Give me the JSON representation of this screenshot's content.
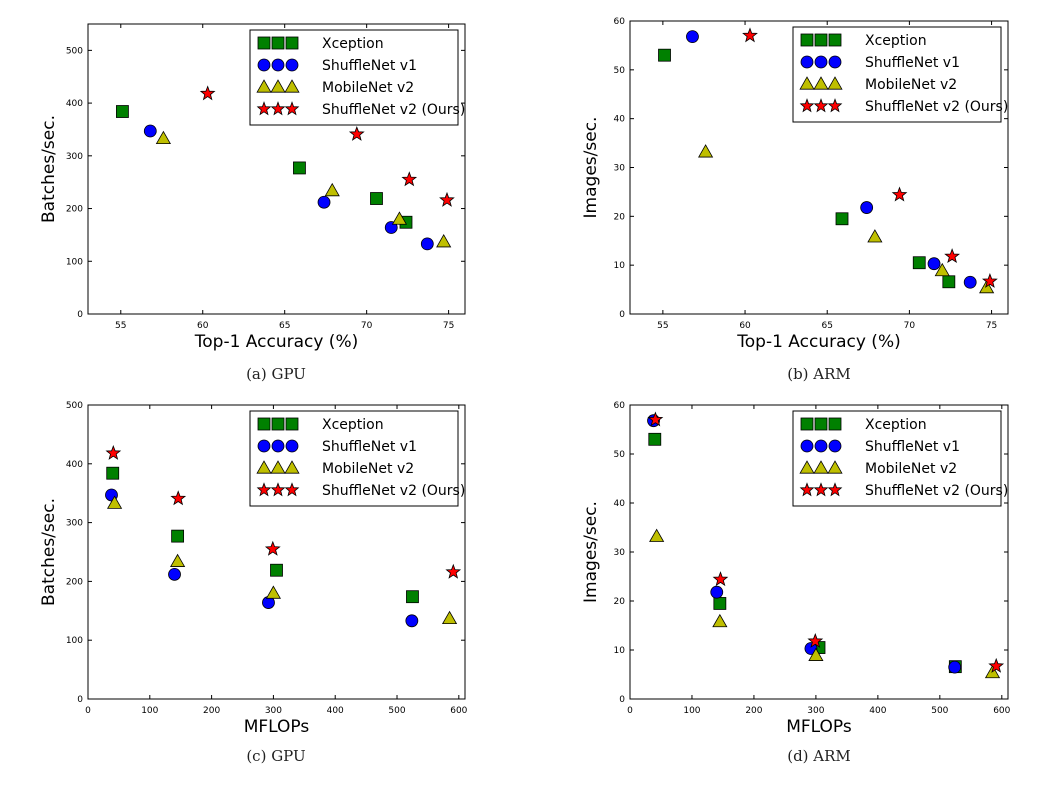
{
  "figure": {
    "colors": {
      "Xception": "#008000",
      "ShuffleNet v1": "#0000ff",
      "MobileNet v2": "#bfbf00",
      "ShuffleNet v2 (Ours)": "#ff0000"
    },
    "markers": {
      "Xception": "square",
      "ShuffleNet v1": "circle",
      "MobileNet v2": "triangle",
      "ShuffleNet v2 (Ours)": "star"
    }
  },
  "chart_data": [
    {
      "type": "scatter",
      "caption": "(a) GPU",
      "xlabel": "Top-1 Accuracy (%)",
      "ylabel": "Batches/sec.",
      "xlim": [
        53,
        76
      ],
      "ylim": [
        0,
        550
      ],
      "xticks": [
        55,
        60,
        65,
        70,
        75
      ],
      "yticks": [
        0,
        100,
        200,
        300,
        400,
        500
      ],
      "legend": "top-right",
      "series": [
        {
          "name": "Xception",
          "x": [
            55.1,
            65.9,
            70.6,
            72.4
          ],
          "y": [
            384,
            277,
            219,
            174
          ]
        },
        {
          "name": "ShuffleNet v1",
          "x": [
            56.8,
            67.4,
            71.5,
            73.7
          ],
          "y": [
            347,
            212,
            164,
            133
          ]
        },
        {
          "name": "MobileNet v2",
          "x": [
            57.6,
            67.9,
            72.0,
            74.7
          ],
          "y": [
            333,
            234,
            180,
            137
          ]
        },
        {
          "name": "ShuffleNet v2 (Ours)",
          "x": [
            60.3,
            69.4,
            72.6,
            74.9
          ],
          "y": [
            418,
            341,
            255,
            216
          ]
        }
      ]
    },
    {
      "type": "scatter",
      "caption": "(b) ARM",
      "xlabel": "Top-1 Accuracy (%)",
      "ylabel": "Images/sec.",
      "xlim": [
        53,
        76
      ],
      "ylim": [
        0,
        60
      ],
      "xticks": [
        55,
        60,
        65,
        70,
        75
      ],
      "yticks": [
        0,
        10,
        20,
        30,
        40,
        50,
        60
      ],
      "legend": "top-right",
      "series": [
        {
          "name": "Xception",
          "x": [
            55.1,
            65.9,
            70.6,
            72.4
          ],
          "y": [
            53.0,
            19.5,
            10.5,
            6.6
          ]
        },
        {
          "name": "ShuffleNet v1",
          "x": [
            56.8,
            67.4,
            71.5,
            73.7
          ],
          "y": [
            56.8,
            21.8,
            10.3,
            6.5
          ]
        },
        {
          "name": "MobileNet v2",
          "x": [
            57.6,
            67.9,
            72.0,
            74.7
          ],
          "y": [
            33.2,
            15.8,
            8.9,
            5.4
          ]
        },
        {
          "name": "ShuffleNet v2 (Ours)",
          "x": [
            60.3,
            69.4,
            72.6,
            74.9
          ],
          "y": [
            57.0,
            24.4,
            11.8,
            6.7
          ]
        }
      ]
    },
    {
      "type": "scatter",
      "caption": "(c) GPU",
      "xlabel": "MFLOPs",
      "ylabel": "Batches/sec.",
      "xlim": [
        0,
        610
      ],
      "ylim": [
        0,
        500
      ],
      "xticks": [
        0,
        100,
        200,
        300,
        400,
        500,
        600
      ],
      "yticks": [
        0,
        100,
        200,
        300,
        400,
        500
      ],
      "legend": "top-right",
      "series": [
        {
          "name": "Xception",
          "x": [
            40,
            145,
            305,
            525
          ],
          "y": [
            384,
            277,
            219,
            174
          ]
        },
        {
          "name": "ShuffleNet v1",
          "x": [
            38,
            140,
            292,
            524
          ],
          "y": [
            347,
            212,
            164,
            133
          ]
        },
        {
          "name": "MobileNet v2",
          "x": [
            43,
            145,
            300,
            585
          ],
          "y": [
            333,
            234,
            180,
            137
          ]
        },
        {
          "name": "ShuffleNet v2 (Ours)",
          "x": [
            41,
            146,
            299,
            591
          ],
          "y": [
            418,
            341,
            255,
            216
          ]
        }
      ]
    },
    {
      "type": "scatter",
      "caption": "(d) ARM",
      "xlabel": "MFLOPs",
      "ylabel": "Images/sec.",
      "xlim": [
        0,
        610
      ],
      "ylim": [
        0,
        60
      ],
      "xticks": [
        0,
        100,
        200,
        300,
        400,
        500,
        600
      ],
      "yticks": [
        0,
        10,
        20,
        30,
        40,
        50,
        60
      ],
      "legend": "top-right",
      "series": [
        {
          "name": "Xception",
          "x": [
            40,
            145,
            305,
            525
          ],
          "y": [
            53.0,
            19.5,
            10.5,
            6.6
          ]
        },
        {
          "name": "ShuffleNet v1",
          "x": [
            38,
            140,
            292,
            524
          ],
          "y": [
            56.8,
            21.8,
            10.3,
            6.5
          ]
        },
        {
          "name": "MobileNet v2",
          "x": [
            43,
            145,
            300,
            585
          ],
          "y": [
            33.2,
            15.8,
            8.9,
            5.4
          ]
        },
        {
          "name": "ShuffleNet v2 (Ours)",
          "x": [
            41,
            146,
            299,
            591
          ],
          "y": [
            57.0,
            24.4,
            11.8,
            6.7
          ]
        }
      ]
    }
  ]
}
